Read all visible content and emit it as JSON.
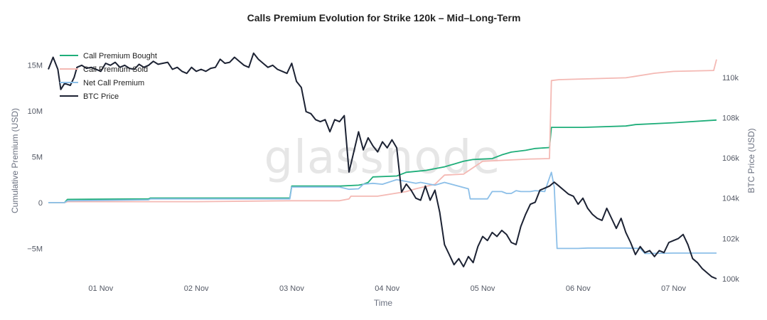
{
  "chart_data": {
    "type": "line",
    "title": "Calls Premium Evolution for Strike 120k – Mid–Long-Term",
    "xlabel": "Time",
    "ylabel_left": "Cumulative Premium (USD)",
    "ylabel_right": "BTC Price (USD)",
    "watermark": "glassnode",
    "legend_position": "top-left",
    "grid": false,
    "x_ticks": [
      {
        "label": "01 Nov",
        "x": 1.0
      },
      {
        "label": "02 Nov",
        "x": 2.0
      },
      {
        "label": "03 Nov",
        "x": 3.0
      },
      {
        "label": "04 Nov",
        "x": 4.0
      },
      {
        "label": "05 Nov",
        "x": 5.0
      },
      {
        "label": "06 Nov",
        "x": 6.0
      },
      {
        "label": "07 Nov",
        "x": 7.0
      }
    ],
    "xlim": [
      0.45,
      7.45
    ],
    "left_axis": {
      "ylim": [
        -8300000,
        16500000
      ],
      "ticks": [
        {
          "label": "−5M",
          "value": -5000000
        },
        {
          "label": "0",
          "value": 0
        },
        {
          "label": "5M",
          "value": 5000000
        },
        {
          "label": "10M",
          "value": 10000000
        },
        {
          "label": "15M",
          "value": 15000000
        }
      ]
    },
    "right_axis": {
      "ylim": [
        100000,
        111300
      ],
      "ticks": [
        {
          "label": "100k",
          "value": 100000
        },
        {
          "label": "102k",
          "value": 102000
        },
        {
          "label": "104k",
          "value": 104000
        },
        {
          "label": "106k",
          "value": 106000
        },
        {
          "label": "108k",
          "value": 108000
        },
        {
          "label": "110k",
          "value": 110000
        }
      ]
    },
    "series": [
      {
        "name": "Call Premium Bought",
        "axis": "left",
        "color": "#1fae7a",
        "points": [
          [
            0.45,
            0
          ],
          [
            0.62,
            0
          ],
          [
            0.65,
            350000
          ],
          [
            1.5,
            400000
          ],
          [
            1.52,
            500000
          ],
          [
            2.98,
            500000
          ],
          [
            3.0,
            1800000
          ],
          [
            3.5,
            1800000
          ],
          [
            3.7,
            1900000
          ],
          [
            3.75,
            2000000
          ],
          [
            3.8,
            2200000
          ],
          [
            3.85,
            2800000
          ],
          [
            4.1,
            2900000
          ],
          [
            4.2,
            3300000
          ],
          [
            4.4,
            3500000
          ],
          [
            4.6,
            3900000
          ],
          [
            4.8,
            4500000
          ],
          [
            4.9,
            4700000
          ],
          [
            5.1,
            4800000
          ],
          [
            5.2,
            5200000
          ],
          [
            5.3,
            5500000
          ],
          [
            5.45,
            5700000
          ],
          [
            5.55,
            5900000
          ],
          [
            5.7,
            6000000
          ],
          [
            5.72,
            8200000
          ],
          [
            6.05,
            8200000
          ],
          [
            6.5,
            8350000
          ],
          [
            6.6,
            8500000
          ],
          [
            7.0,
            8700000
          ],
          [
            7.45,
            9000000
          ]
        ]
      },
      {
        "name": "Call Premium Sold",
        "axis": "left",
        "color": "#f4b9b4",
        "points": [
          [
            0.45,
            0
          ],
          [
            0.62,
            0
          ],
          [
            0.65,
            100000
          ],
          [
            2.0,
            100000
          ],
          [
            3.0,
            200000
          ],
          [
            3.5,
            200000
          ],
          [
            3.6,
            400000
          ],
          [
            3.62,
            700000
          ],
          [
            3.9,
            700000
          ],
          [
            4.2,
            1200000
          ],
          [
            4.3,
            1500000
          ],
          [
            4.5,
            2000000
          ],
          [
            4.6,
            3000000
          ],
          [
            4.8,
            3100000
          ],
          [
            5.0,
            4500000
          ],
          [
            5.2,
            4600000
          ],
          [
            5.5,
            4750000
          ],
          [
            5.7,
            4800000
          ],
          [
            5.72,
            13300000
          ],
          [
            5.8,
            13400000
          ],
          [
            6.5,
            13600000
          ],
          [
            6.8,
            14100000
          ],
          [
            7.0,
            14300000
          ],
          [
            7.42,
            14400000
          ],
          [
            7.45,
            15600000
          ]
        ]
      },
      {
        "name": "Net Call Premium",
        "axis": "left",
        "color": "#8cbfe8",
        "points": [
          [
            0.45,
            0
          ],
          [
            0.62,
            0
          ],
          [
            0.65,
            200000
          ],
          [
            1.5,
            300000
          ],
          [
            1.52,
            400000
          ],
          [
            2.98,
            400000
          ],
          [
            3.0,
            1700000
          ],
          [
            3.5,
            1700000
          ],
          [
            3.6,
            1450000
          ],
          [
            3.7,
            1500000
          ],
          [
            3.75,
            2000000
          ],
          [
            3.85,
            2100000
          ],
          [
            3.95,
            2000000
          ],
          [
            4.1,
            2500000
          ],
          [
            4.3,
            2100000
          ],
          [
            4.35,
            2200000
          ],
          [
            4.45,
            2000000
          ],
          [
            4.5,
            1900000
          ],
          [
            4.6,
            2200000
          ],
          [
            4.85,
            1500000
          ],
          [
            4.87,
            400000
          ],
          [
            5.05,
            400000
          ],
          [
            5.1,
            1200000
          ],
          [
            5.2,
            1200000
          ],
          [
            5.25,
            1000000
          ],
          [
            5.3,
            1000000
          ],
          [
            5.35,
            1300000
          ],
          [
            5.4,
            1200000
          ],
          [
            5.5,
            1200000
          ],
          [
            5.55,
            1300000
          ],
          [
            5.65,
            1200000
          ],
          [
            5.72,
            3300000
          ],
          [
            5.75,
            1700000
          ],
          [
            5.78,
            -5000000
          ],
          [
            6.0,
            -5000000
          ],
          [
            6.1,
            -4950000
          ],
          [
            6.5,
            -4950000
          ],
          [
            6.65,
            -5000000
          ],
          [
            6.7,
            -5550000
          ],
          [
            7.0,
            -5500000
          ],
          [
            7.45,
            -5500000
          ]
        ]
      },
      {
        "name": "BTC Price",
        "axis": "right",
        "color": "#1c2233",
        "points": [
          [
            0.45,
            110400
          ],
          [
            0.5,
            111000
          ],
          [
            0.55,
            110400
          ],
          [
            0.58,
            109400
          ],
          [
            0.62,
            109700
          ],
          [
            0.68,
            109600
          ],
          [
            0.72,
            110000
          ],
          [
            0.75,
            110500
          ],
          [
            0.8,
            110600
          ],
          [
            0.85,
            110450
          ],
          [
            0.9,
            110500
          ],
          [
            1.0,
            110300
          ],
          [
            1.05,
            110700
          ],
          [
            1.1,
            110600
          ],
          [
            1.15,
            110750
          ],
          [
            1.2,
            110500
          ],
          [
            1.25,
            110600
          ],
          [
            1.3,
            110450
          ],
          [
            1.35,
            110400
          ],
          [
            1.4,
            110650
          ],
          [
            1.45,
            110500
          ],
          [
            1.5,
            110600
          ],
          [
            1.55,
            110800
          ],
          [
            1.6,
            110650
          ],
          [
            1.65,
            110700
          ],
          [
            1.7,
            110750
          ],
          [
            1.75,
            110400
          ],
          [
            1.8,
            110500
          ],
          [
            1.85,
            110300
          ],
          [
            1.9,
            110200
          ],
          [
            1.95,
            110500
          ],
          [
            2.0,
            110300
          ],
          [
            2.05,
            110400
          ],
          [
            2.1,
            110300
          ],
          [
            2.15,
            110450
          ],
          [
            2.2,
            110500
          ],
          [
            2.25,
            110900
          ],
          [
            2.3,
            110700
          ],
          [
            2.35,
            110750
          ],
          [
            2.4,
            111000
          ],
          [
            2.45,
            110800
          ],
          [
            2.5,
            110600
          ],
          [
            2.55,
            110500
          ],
          [
            2.6,
            111200
          ],
          [
            2.65,
            110900
          ],
          [
            2.7,
            110700
          ],
          [
            2.75,
            110500
          ],
          [
            2.8,
            110600
          ],
          [
            2.85,
            110400
          ],
          [
            2.9,
            110300
          ],
          [
            2.95,
            110200
          ],
          [
            3.0,
            110700
          ],
          [
            3.05,
            109800
          ],
          [
            3.1,
            109500
          ],
          [
            3.15,
            108300
          ],
          [
            3.2,
            108200
          ],
          [
            3.25,
            107900
          ],
          [
            3.3,
            107800
          ],
          [
            3.35,
            107900
          ],
          [
            3.4,
            107300
          ],
          [
            3.45,
            107900
          ],
          [
            3.5,
            107800
          ],
          [
            3.55,
            108100
          ],
          [
            3.6,
            105300
          ],
          [
            3.65,
            106300
          ],
          [
            3.7,
            107300
          ],
          [
            3.75,
            106400
          ],
          [
            3.8,
            107000
          ],
          [
            3.85,
            106600
          ],
          [
            3.9,
            106300
          ],
          [
            3.95,
            106800
          ],
          [
            4.0,
            106500
          ],
          [
            4.05,
            106900
          ],
          [
            4.1,
            106500
          ],
          [
            4.15,
            104300
          ],
          [
            4.2,
            104700
          ],
          [
            4.25,
            104400
          ],
          [
            4.3,
            104000
          ],
          [
            4.35,
            103900
          ],
          [
            4.4,
            104600
          ],
          [
            4.45,
            103900
          ],
          [
            4.5,
            104400
          ],
          [
            4.55,
            103300
          ],
          [
            4.6,
            101700
          ],
          [
            4.65,
            101200
          ],
          [
            4.7,
            100700
          ],
          [
            4.75,
            101000
          ],
          [
            4.8,
            100600
          ],
          [
            4.85,
            101100
          ],
          [
            4.9,
            100800
          ],
          [
            4.95,
            101600
          ],
          [
            5.0,
            102100
          ],
          [
            5.05,
            101900
          ],
          [
            5.1,
            102300
          ],
          [
            5.15,
            102100
          ],
          [
            5.2,
            102400
          ],
          [
            5.25,
            102200
          ],
          [
            5.3,
            101800
          ],
          [
            5.35,
            101700
          ],
          [
            5.4,
            102600
          ],
          [
            5.45,
            103200
          ],
          [
            5.5,
            103700
          ],
          [
            5.55,
            103800
          ],
          [
            5.6,
            104400
          ],
          [
            5.65,
            104500
          ],
          [
            5.7,
            104600
          ],
          [
            5.75,
            104800
          ],
          [
            5.8,
            104600
          ],
          [
            5.85,
            104400
          ],
          [
            5.9,
            104200
          ],
          [
            5.95,
            104100
          ],
          [
            6.0,
            103700
          ],
          [
            6.05,
            104000
          ],
          [
            6.1,
            103500
          ],
          [
            6.15,
            103200
          ],
          [
            6.2,
            103000
          ],
          [
            6.25,
            102900
          ],
          [
            6.3,
            103500
          ],
          [
            6.35,
            103000
          ],
          [
            6.4,
            102500
          ],
          [
            6.45,
            103000
          ],
          [
            6.5,
            102300
          ],
          [
            6.55,
            101800
          ],
          [
            6.6,
            101200
          ],
          [
            6.65,
            101600
          ],
          [
            6.7,
            101300
          ],
          [
            6.75,
            101400
          ],
          [
            6.8,
            101100
          ],
          [
            6.85,
            101400
          ],
          [
            6.9,
            101300
          ],
          [
            6.95,
            101800
          ],
          [
            7.0,
            101900
          ],
          [
            7.05,
            102000
          ],
          [
            7.1,
            102200
          ],
          [
            7.15,
            101700
          ],
          [
            7.2,
            101000
          ],
          [
            7.25,
            100800
          ],
          [
            7.3,
            100500
          ],
          [
            7.35,
            100300
          ],
          [
            7.4,
            100100
          ],
          [
            7.45,
            100000
          ]
        ]
      }
    ]
  }
}
